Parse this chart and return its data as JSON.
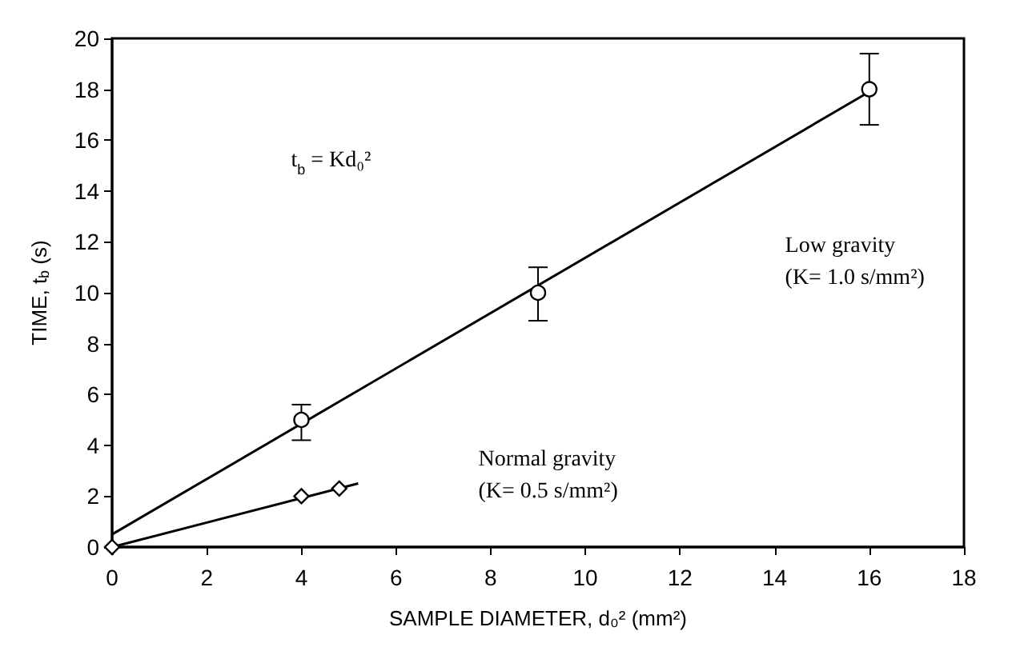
{
  "chart_data": {
    "type": "scatter",
    "xlabel": "SAMPLE DIAMETER, d₀² (mm²)",
    "ylabel": "TIME, t$_{b}$ (s)",
    "xlim": [
      0,
      18
    ],
    "xticks": [
      0,
      2,
      4,
      6,
      8,
      10,
      12,
      14,
      16,
      18
    ],
    "ylim": [
      0,
      20
    ],
    "yticks": [
      0,
      2,
      4,
      6,
      8,
      10,
      12,
      14,
      16,
      18,
      20
    ],
    "grid": false,
    "series": [
      {
        "color": "#000000",
        "marker": "circle",
        "x": [
          4,
          9,
          16
        ],
        "values": [
          5,
          10,
          18
        ],
        "errors": [
          [
            4.2,
            5.6
          ],
          [
            8.9,
            11.0
          ],
          [
            16.6,
            19.4
          ]
        ]
      },
      {
        "color": "#000000",
        "marker": "diamond",
        "x": [
          0,
          4,
          4.8
        ],
        "values": [
          0,
          2,
          2.3
        ]
      },
      {
        "type": "line",
        "color": "#000000",
        "marker": "none",
        "x": [
          0,
          16
        ],
        "values": [
          0.5,
          17.9
        ]
      },
      {
        "type": "line",
        "color": "#000000",
        "marker": "none",
        "x": [
          0,
          5.2
        ],
        "values": [
          0,
          2.5
        ]
      }
    ],
    "annotations": [
      "t$_{b}$ = Kd₀²",
      "Low gravity\n(K= 1.0 s/mm²)",
      "Normal gravity\n(K= 0.5 s/mm²)"
    ]
  }
}
